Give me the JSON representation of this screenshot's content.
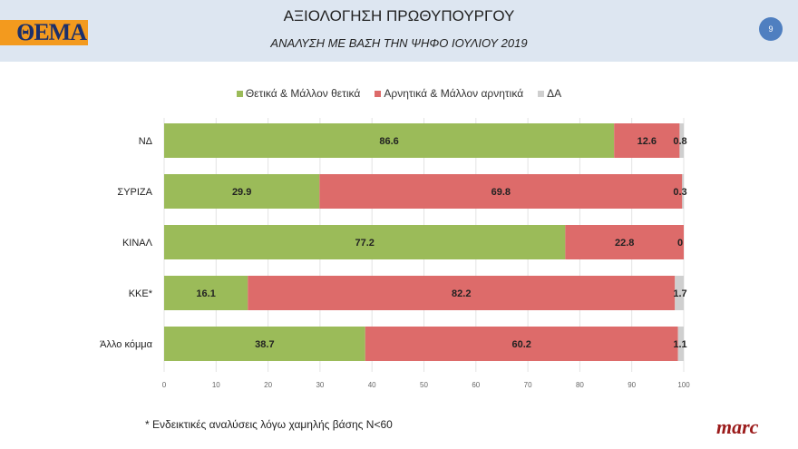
{
  "header": {
    "title": "ΑΞΙΟΛΟΓΗΣΗ ΠΡΩΘΥΠΟΥΡΓΟΥ",
    "subtitle": "ΑΝΑΛΥΣΗ ΜΕ ΒΑΣΗ ΤΗΝ ΨΗΦΟ ΙΟΥΛΙΟΥ 2019",
    "logo": "ΘΕΜΑ",
    "page_number": "9"
  },
  "footer": {
    "footnote": "* Ενδεικτικές αναλύσεις λόγω χαμηλής βάσης Ν<60",
    "brand": "marc"
  },
  "chart_data": {
    "type": "bar",
    "orientation": "horizontal",
    "stacked": true,
    "categories": [
      "ΝΔ",
      "ΣΥΡΙΖΑ",
      "ΚΙΝΑΛ",
      "ΚΚΕ*",
      "Άλλο κόμμα"
    ],
    "series": [
      {
        "name": "Θετικά & Μάλλον θετικά",
        "color": "#9bbb59",
        "values": [
          86.6,
          29.9,
          77.2,
          16.1,
          38.7
        ]
      },
      {
        "name": "Αρνητικά & Μάλλον αρνητικά",
        "color": "#dd6b6a",
        "values": [
          12.6,
          69.8,
          22.8,
          82.2,
          60.2
        ]
      },
      {
        "name": "ΔΑ",
        "color": "#cfcfcf",
        "values": [
          0.8,
          0.3,
          0,
          1.7,
          1.1
        ]
      }
    ],
    "xlim": [
      0,
      100
    ],
    "xticks": [
      "0",
      "10",
      "20",
      "30",
      "40",
      "50",
      "60",
      "70",
      "80",
      "90",
      "100"
    ],
    "grid": true,
    "legend": "top"
  }
}
